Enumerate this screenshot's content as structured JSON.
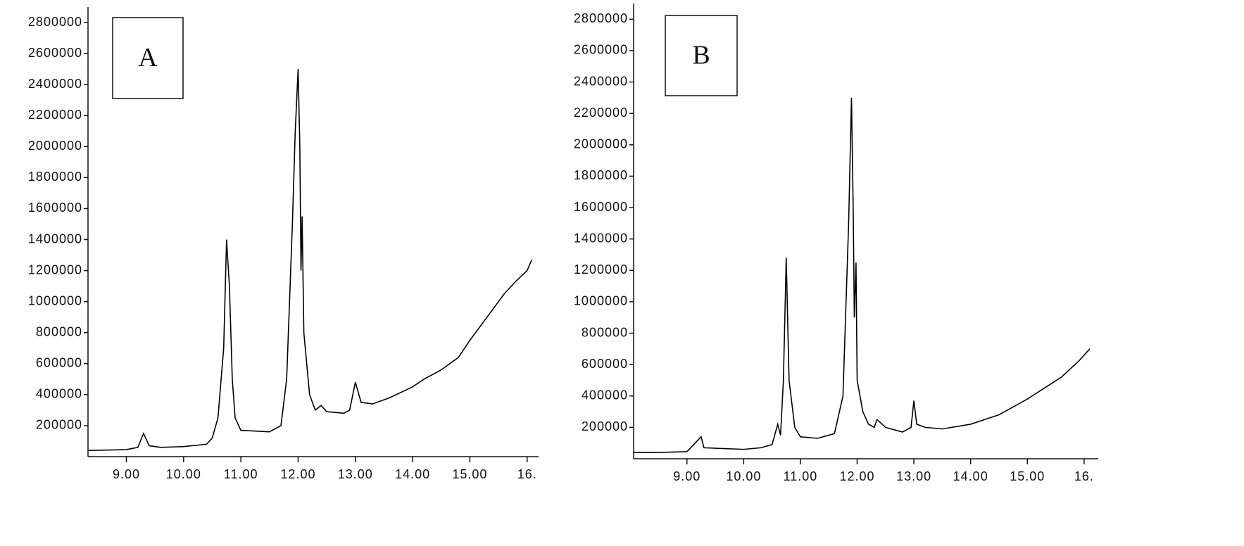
{
  "chart_data": [
    {
      "type": "line",
      "annotation": "A",
      "series": [
        {
          "color": "#000000",
          "x": [
            8.33,
            9.0,
            9.2,
            9.3,
            9.4,
            9.6,
            10.0,
            10.4,
            10.5,
            10.6,
            10.7,
            10.75,
            10.8,
            10.85,
            10.9,
            11.0,
            11.5,
            11.7,
            11.8,
            11.9,
            11.95,
            12.0,
            12.03,
            12.05,
            12.07,
            12.1,
            12.2,
            12.3,
            12.4,
            12.5,
            12.8,
            12.9,
            13.0,
            13.1,
            13.3,
            13.6,
            14.0,
            14.2,
            14.5,
            14.8,
            15.0,
            15.2,
            15.4,
            15.6,
            15.8,
            16.0,
            16.08
          ],
          "values": [
            40000,
            45000,
            60000,
            150000,
            70000,
            60000,
            65000,
            80000,
            120000,
            250000,
            700000,
            1400000,
            1100000,
            500000,
            250000,
            170000,
            160000,
            200000,
            500000,
            1500000,
            2100000,
            2500000,
            2000000,
            1200000,
            1550000,
            800000,
            400000,
            300000,
            330000,
            290000,
            280000,
            300000,
            480000,
            350000,
            340000,
            380000,
            450000,
            500000,
            560000,
            640000,
            750000,
            850000,
            950000,
            1050000,
            1130000,
            1200000,
            1270000
          ]
        }
      ],
      "xlim": [
        8.33,
        16.2
      ],
      "ylim": [
        0,
        2900000
      ],
      "xticks": [
        {
          "value": 9,
          "label": "9.00"
        },
        {
          "value": 10,
          "label": "10.00"
        },
        {
          "value": 11,
          "label": "11.00"
        },
        {
          "value": 12,
          "label": "12.00"
        },
        {
          "value": 13,
          "label": "13.00"
        },
        {
          "value": 14,
          "label": "14.00"
        },
        {
          "value": 15,
          "label": "15.00"
        },
        {
          "value": 16,
          "label": "16."
        }
      ],
      "yticks": [
        200000,
        400000,
        600000,
        800000,
        1000000,
        1200000,
        1400000,
        1600000,
        1800000,
        2000000,
        2200000,
        2400000,
        2600000,
        2800000
      ]
    },
    {
      "type": "line",
      "annotation": "B",
      "series": [
        {
          "color": "#000000",
          "x": [
            8.06,
            8.5,
            9.0,
            9.25,
            9.3,
            10.0,
            10.3,
            10.5,
            10.6,
            10.65,
            10.7,
            10.75,
            10.8,
            10.9,
            11.0,
            11.3,
            11.6,
            11.75,
            11.85,
            11.9,
            11.93,
            11.95,
            11.98,
            12.0,
            12.1,
            12.2,
            12.3,
            12.35,
            12.5,
            12.8,
            12.95,
            13.0,
            13.05,
            13.2,
            13.5,
            14.0,
            14.5,
            15.0,
            15.3,
            15.6,
            15.9,
            16.1
          ],
          "values": [
            40000,
            40000,
            45000,
            140000,
            70000,
            60000,
            70000,
            90000,
            220000,
            150000,
            500000,
            1280000,
            500000,
            200000,
            140000,
            130000,
            160000,
            400000,
            1500000,
            2300000,
            1600000,
            900000,
            1250000,
            500000,
            300000,
            220000,
            200000,
            250000,
            200000,
            170000,
            200000,
            370000,
            220000,
            200000,
            190000,
            220000,
            280000,
            380000,
            450000,
            520000,
            620000,
            700000
          ]
        }
      ],
      "xlim": [
        8.06,
        16.25
      ],
      "ylim": [
        0,
        2900000
      ],
      "xticks": [
        {
          "value": 9,
          "label": "9.00"
        },
        {
          "value": 10,
          "label": "10.00"
        },
        {
          "value": 11,
          "label": "11.00"
        },
        {
          "value": 12,
          "label": "12.00"
        },
        {
          "value": 13,
          "label": "13.00"
        },
        {
          "value": 14,
          "label": "14.00"
        },
        {
          "value": 15,
          "label": "15.00"
        },
        {
          "value": 16,
          "label": "16."
        }
      ],
      "yticks": [
        200000,
        400000,
        600000,
        800000,
        1000000,
        1200000,
        1400000,
        1600000,
        1800000,
        2000000,
        2200000,
        2400000,
        2600000,
        2800000
      ]
    }
  ]
}
